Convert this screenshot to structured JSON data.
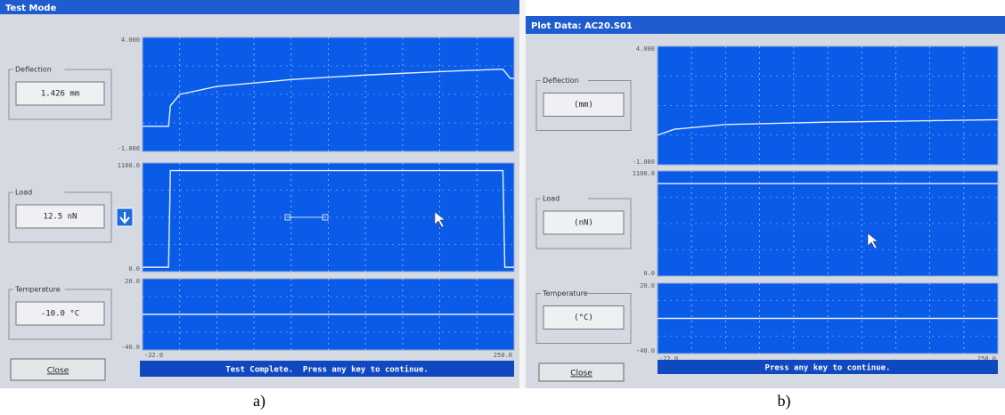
{
  "panels": [
    {
      "title": "Test Mode",
      "plots": [
        {
          "label": "Deflection",
          "value": "1.426 mm",
          "y_top": "4.000",
          "y_bottom": "-1.000"
        },
        {
          "label": "Load",
          "value": "12.5 nN",
          "y_top": "1100.0",
          "y_bottom": "0.0"
        },
        {
          "label": "Temperature",
          "value": "-10.0 °C",
          "y_top": "20.0",
          "y_bottom": "-40.0"
        }
      ],
      "x_start": "-22.0",
      "x_end": "250.0",
      "close": "Close",
      "status": "Test Complete.  Press any key to continue.",
      "caption": "a)"
    },
    {
      "title": "Plot Data: AC20.S01",
      "plots": [
        {
          "label": "Deflection",
          "value": "(mm)",
          "y_top": "4.000",
          "y_bottom": "-1.000"
        },
        {
          "label": "Load",
          "value": "(nN)",
          "y_top": "1100.0",
          "y_bottom": "0.0"
        },
        {
          "label": "Temperature",
          "value": "(°C)",
          "y_top": "20.0",
          "y_bottom": "-40.0"
        }
      ],
      "x_start": "-22.0",
      "x_end": "250.0",
      "close": "Close",
      "status": "Press any key to continue.",
      "caption": "b)"
    }
  ]
}
